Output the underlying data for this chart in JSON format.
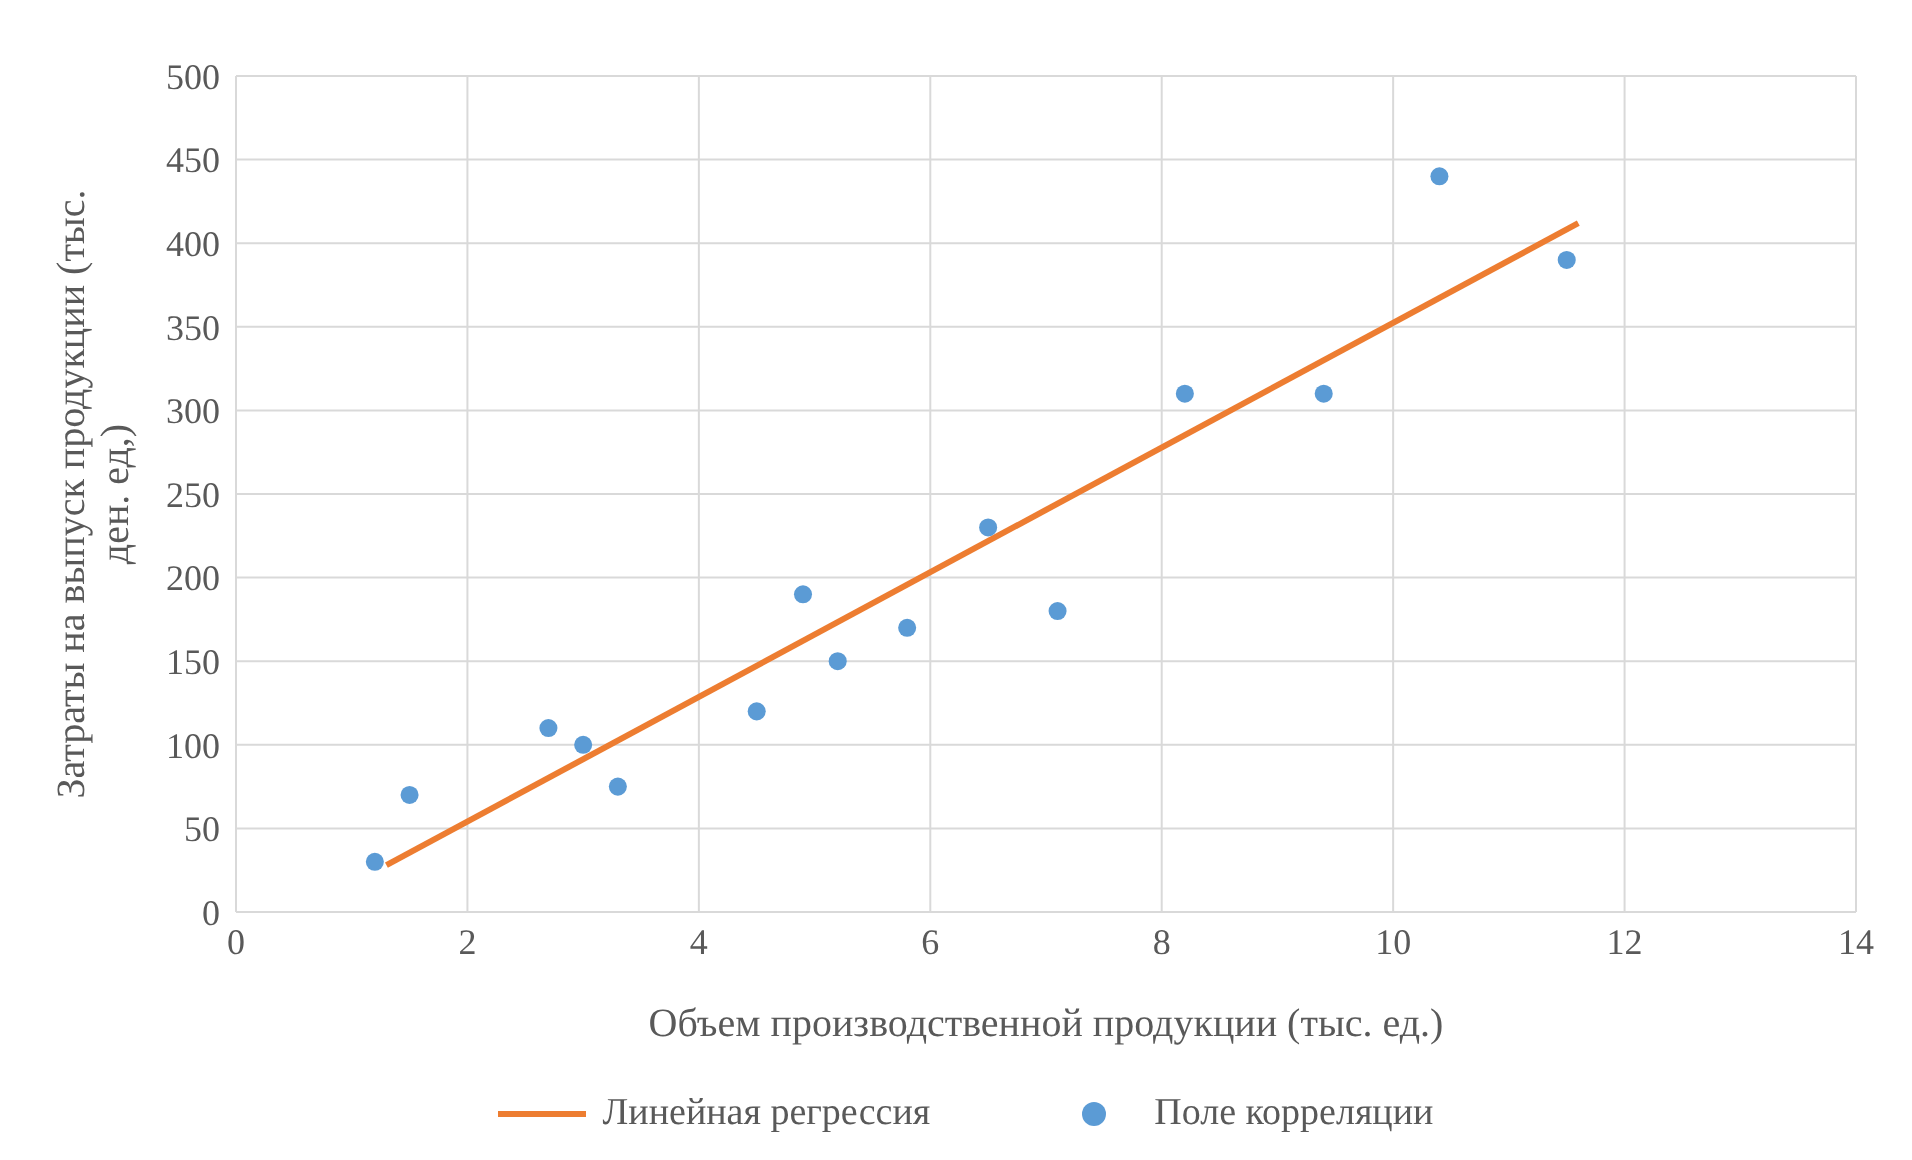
{
  "chart_data": {
    "type": "scatter",
    "xlabel": "Объем производственной продукции (тыс. ед.)",
    "ylabel": "Затраты на выпуск продукции (тыс. ден. ед,)",
    "xlim": [
      0,
      14
    ],
    "xticks": [
      0,
      2,
      4,
      6,
      8,
      10,
      12,
      14
    ],
    "ylim": [
      0,
      500
    ],
    "yticks": [
      0,
      50,
      100,
      150,
      200,
      250,
      300,
      350,
      400,
      450,
      500
    ],
    "grid": true,
    "legend": "bottom",
    "marker": "circle",
    "series": [
      {
        "name": "Линейная регрессия",
        "type": "line",
        "marker": "none",
        "color": "#ed7d31",
        "x": [
          1.3,
          11.6
        ],
        "values": [
          28,
          412
        ]
      },
      {
        "name": "Поле корреляции",
        "color": "#5b9bd5",
        "x": [
          1.2,
          1.5,
          2.7,
          3.0,
          3.3,
          4.5,
          4.9,
          5.2,
          5.8,
          6.5,
          7.1,
          8.2,
          9.4,
          10.4,
          11.5
        ],
        "values": [
          30,
          70,
          110,
          100,
          75,
          120,
          190,
          150,
          170,
          230,
          180,
          310,
          310,
          440,
          390
        ]
      }
    ]
  }
}
